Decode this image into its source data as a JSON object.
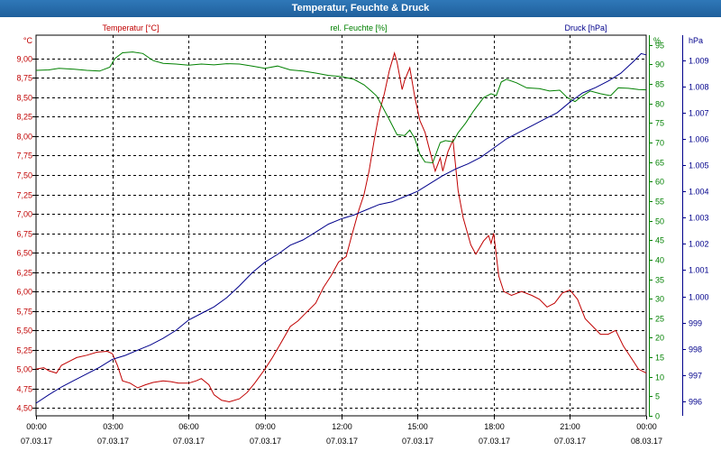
{
  "window": {
    "title": "Temperatur, Feuchte & Druck"
  },
  "chart_data": {
    "type": "line",
    "x_ticks": [
      {
        "time": "00:00",
        "date": "07.03.17"
      },
      {
        "time": "03:00",
        "date": "07.03.17"
      },
      {
        "time": "06:00",
        "date": "07.03.17"
      },
      {
        "time": "09:00",
        "date": "07.03.17"
      },
      {
        "time": "12:00",
        "date": "07.03.17"
      },
      {
        "time": "15:00",
        "date": "07.03.17"
      },
      {
        "time": "18:00",
        "date": "07.03.17"
      },
      {
        "time": "21:00",
        "date": "07.03.17"
      },
      {
        "time": "00:00",
        "date": "08.03.17"
      }
    ],
    "xlim": [
      0,
      24
    ],
    "axes": {
      "temperature": {
        "unit": "°C",
        "ylim": [
          4.4,
          9.3
        ],
        "color": "#c00000",
        "ticks": [
          "4,50",
          "4,75",
          "5,00",
          "5,25",
          "5,50",
          "5,75",
          "6,00",
          "6,25",
          "6,50",
          "6,75",
          "7,00",
          "7,25",
          "7,50",
          "7,75",
          "8,00",
          "8,25",
          "8,50",
          "8,75",
          "9,00"
        ]
      },
      "humidity": {
        "unit": "%",
        "ylim": [
          0,
          97.5
        ],
        "color": "#008000",
        "ticks": [
          "0",
          "5",
          "10",
          "15",
          "20",
          "25",
          "30",
          "35",
          "40",
          "45",
          "50",
          "55",
          "60",
          "65",
          "70",
          "75",
          "80",
          "85",
          "90",
          "95"
        ]
      },
      "pressure": {
        "unit": "hPa",
        "ylim": [
          995.45,
          1009.95
        ],
        "color": "#00008b",
        "ticks": [
          "996",
          "997",
          "998",
          "999",
          "1.000",
          "1.001",
          "1.002",
          "1.003",
          "1.004",
          "1.005",
          "1.006",
          "1.007",
          "1.008",
          "1.009"
        ]
      }
    },
    "series": [
      {
        "name": "Temperatur [°C]",
        "axis": "temperature",
        "color": "#c00000",
        "points": [
          [
            0,
            5.0
          ],
          [
            0.3,
            5.02
          ],
          [
            0.5,
            4.98
          ],
          [
            0.8,
            4.95
          ],
          [
            1.0,
            5.05
          ],
          [
            1.3,
            5.1
          ],
          [
            1.6,
            5.15
          ],
          [
            2.0,
            5.18
          ],
          [
            2.4,
            5.22
          ],
          [
            2.8,
            5.23
          ],
          [
            3.0,
            5.2
          ],
          [
            3.2,
            5.05
          ],
          [
            3.4,
            4.85
          ],
          [
            3.7,
            4.82
          ],
          [
            4.0,
            4.76
          ],
          [
            4.3,
            4.8
          ],
          [
            4.6,
            4.83
          ],
          [
            5.0,
            4.85
          ],
          [
            5.3,
            4.84
          ],
          [
            5.6,
            4.82
          ],
          [
            6.0,
            4.82
          ],
          [
            6.3,
            4.85
          ],
          [
            6.5,
            4.88
          ],
          [
            6.8,
            4.8
          ],
          [
            7.0,
            4.67
          ],
          [
            7.3,
            4.6
          ],
          [
            7.6,
            4.58
          ],
          [
            8.0,
            4.62
          ],
          [
            8.3,
            4.7
          ],
          [
            8.6,
            4.82
          ],
          [
            9.0,
            5.0
          ],
          [
            9.3,
            5.15
          ],
          [
            9.6,
            5.32
          ],
          [
            10.0,
            5.55
          ],
          [
            10.3,
            5.62
          ],
          [
            10.6,
            5.72
          ],
          [
            11.0,
            5.85
          ],
          [
            11.3,
            6.05
          ],
          [
            11.6,
            6.2
          ],
          [
            11.9,
            6.38
          ],
          [
            12.2,
            6.45
          ],
          [
            12.4,
            6.7
          ],
          [
            12.7,
            7.05
          ],
          [
            12.9,
            7.25
          ],
          [
            13.1,
            7.55
          ],
          [
            13.3,
            7.95
          ],
          [
            13.5,
            8.3
          ],
          [
            13.7,
            8.55
          ],
          [
            13.9,
            8.85
          ],
          [
            14.1,
            9.07
          ],
          [
            14.2,
            8.95
          ],
          [
            14.4,
            8.6
          ],
          [
            14.5,
            8.72
          ],
          [
            14.7,
            8.88
          ],
          [
            14.9,
            8.5
          ],
          [
            15.1,
            8.2
          ],
          [
            15.3,
            8.05
          ],
          [
            15.5,
            7.8
          ],
          [
            15.7,
            7.55
          ],
          [
            15.9,
            7.72
          ],
          [
            16.0,
            7.55
          ],
          [
            16.2,
            7.8
          ],
          [
            16.4,
            7.95
          ],
          [
            16.6,
            7.3
          ],
          [
            16.8,
            6.95
          ],
          [
            17.1,
            6.6
          ],
          [
            17.3,
            6.48
          ],
          [
            17.6,
            6.65
          ],
          [
            17.8,
            6.72
          ],
          [
            17.9,
            6.62
          ],
          [
            18.0,
            6.75
          ],
          [
            18.2,
            6.2
          ],
          [
            18.4,
            6.0
          ],
          [
            18.7,
            5.95
          ],
          [
            19.1,
            6.0
          ],
          [
            19.5,
            5.95
          ],
          [
            19.8,
            5.9
          ],
          [
            20.1,
            5.8
          ],
          [
            20.4,
            5.85
          ],
          [
            20.7,
            5.98
          ],
          [
            21.0,
            6.02
          ],
          [
            21.3,
            5.9
          ],
          [
            21.6,
            5.65
          ],
          [
            21.9,
            5.55
          ],
          [
            22.2,
            5.45
          ],
          [
            22.5,
            5.45
          ],
          [
            22.8,
            5.5
          ],
          [
            23.1,
            5.3
          ],
          [
            23.4,
            5.15
          ],
          [
            23.7,
            5.0
          ],
          [
            24.0,
            4.95
          ]
        ]
      },
      {
        "name": "rel. Feuchte [%]",
        "axis": "humidity",
        "color": "#008000",
        "points": [
          [
            0,
            88.5
          ],
          [
            0.5,
            88.6
          ],
          [
            0.9,
            89.0
          ],
          [
            1.5,
            88.8
          ],
          [
            2.0,
            88.5
          ],
          [
            2.5,
            88.3
          ],
          [
            2.9,
            89.3
          ],
          [
            3.1,
            91.5
          ],
          [
            3.4,
            93.0
          ],
          [
            3.8,
            93.2
          ],
          [
            4.2,
            92.8
          ],
          [
            4.6,
            91.0
          ],
          [
            5.0,
            90.3
          ],
          [
            5.5,
            90.1
          ],
          [
            6.0,
            89.8
          ],
          [
            6.5,
            90.1
          ],
          [
            7.0,
            89.9
          ],
          [
            7.5,
            90.2
          ],
          [
            8.0,
            90.1
          ],
          [
            8.5,
            89.6
          ],
          [
            9.0,
            89.0
          ],
          [
            9.5,
            89.6
          ],
          [
            10.0,
            88.6
          ],
          [
            10.5,
            88.3
          ],
          [
            11.0,
            87.8
          ],
          [
            11.5,
            87.2
          ],
          [
            12.0,
            86.9
          ],
          [
            12.5,
            86.2
          ],
          [
            12.9,
            84.8
          ],
          [
            13.2,
            83.1
          ],
          [
            13.4,
            81.9
          ],
          [
            13.6,
            79.5
          ],
          [
            13.9,
            75.8
          ],
          [
            14.2,
            72.0
          ],
          [
            14.5,
            71.8
          ],
          [
            14.7,
            73.2
          ],
          [
            14.9,
            71.0
          ],
          [
            15.1,
            67.0
          ],
          [
            15.3,
            65.0
          ],
          [
            15.6,
            64.8
          ],
          [
            15.9,
            70.0
          ],
          [
            16.1,
            70.5
          ],
          [
            16.4,
            70.2
          ],
          [
            16.6,
            72.5
          ],
          [
            16.9,
            75.0
          ],
          [
            17.2,
            78.0
          ],
          [
            17.6,
            81.5
          ],
          [
            17.9,
            82.5
          ],
          [
            18.1,
            82.0
          ],
          [
            18.3,
            85.5
          ],
          [
            18.5,
            86.2
          ],
          [
            18.9,
            85.3
          ],
          [
            19.3,
            84.0
          ],
          [
            19.8,
            83.8
          ],
          [
            20.2,
            83.2
          ],
          [
            20.6,
            83.4
          ],
          [
            20.9,
            81.5
          ],
          [
            21.2,
            80.5
          ],
          [
            21.5,
            82.0
          ],
          [
            21.8,
            83.2
          ],
          [
            22.2,
            82.5
          ],
          [
            22.6,
            82.0
          ],
          [
            22.9,
            84.0
          ],
          [
            23.3,
            83.9
          ],
          [
            23.7,
            83.6
          ],
          [
            24.0,
            83.5
          ]
        ]
      },
      {
        "name": "Druck [hPa]",
        "axis": "pressure",
        "color": "#00008b",
        "points": [
          [
            0,
            995.93
          ],
          [
            0.5,
            996.25
          ],
          [
            1.0,
            996.55
          ],
          [
            1.5,
            996.8
          ],
          [
            2.0,
            997.05
          ],
          [
            2.5,
            997.3
          ],
          [
            3.0,
            997.6
          ],
          [
            3.5,
            997.75
          ],
          [
            4.0,
            997.95
          ],
          [
            4.5,
            998.15
          ],
          [
            5.0,
            998.4
          ],
          [
            5.5,
            998.7
          ],
          [
            6.0,
            999.1
          ],
          [
            6.5,
            999.35
          ],
          [
            7.0,
            999.6
          ],
          [
            7.5,
            999.95
          ],
          [
            8.0,
            1000.4
          ],
          [
            8.5,
            1000.9
          ],
          [
            9.0,
            1001.3
          ],
          [
            9.5,
            1001.6
          ],
          [
            10.0,
            1001.95
          ],
          [
            10.5,
            1002.15
          ],
          [
            11.0,
            1002.45
          ],
          [
            11.5,
            1002.75
          ],
          [
            12.0,
            1002.95
          ],
          [
            12.5,
            1003.1
          ],
          [
            13.0,
            1003.3
          ],
          [
            13.5,
            1003.5
          ],
          [
            14.0,
            1003.6
          ],
          [
            14.5,
            1003.8
          ],
          [
            15.0,
            1004.0
          ],
          [
            15.5,
            1004.3
          ],
          [
            16.0,
            1004.6
          ],
          [
            16.5,
            1004.85
          ],
          [
            17.0,
            1005.05
          ],
          [
            17.5,
            1005.3
          ],
          [
            18.0,
            1005.65
          ],
          [
            18.5,
            1006.0
          ],
          [
            19.0,
            1006.25
          ],
          [
            19.5,
            1006.5
          ],
          [
            20.0,
            1006.75
          ],
          [
            20.5,
            1007.0
          ],
          [
            21.0,
            1007.4
          ],
          [
            21.5,
            1007.75
          ],
          [
            22.0,
            1007.95
          ],
          [
            22.5,
            1008.2
          ],
          [
            23.0,
            1008.5
          ],
          [
            23.5,
            1008.95
          ],
          [
            23.8,
            1009.25
          ],
          [
            24.0,
            1009.2
          ]
        ]
      }
    ]
  }
}
